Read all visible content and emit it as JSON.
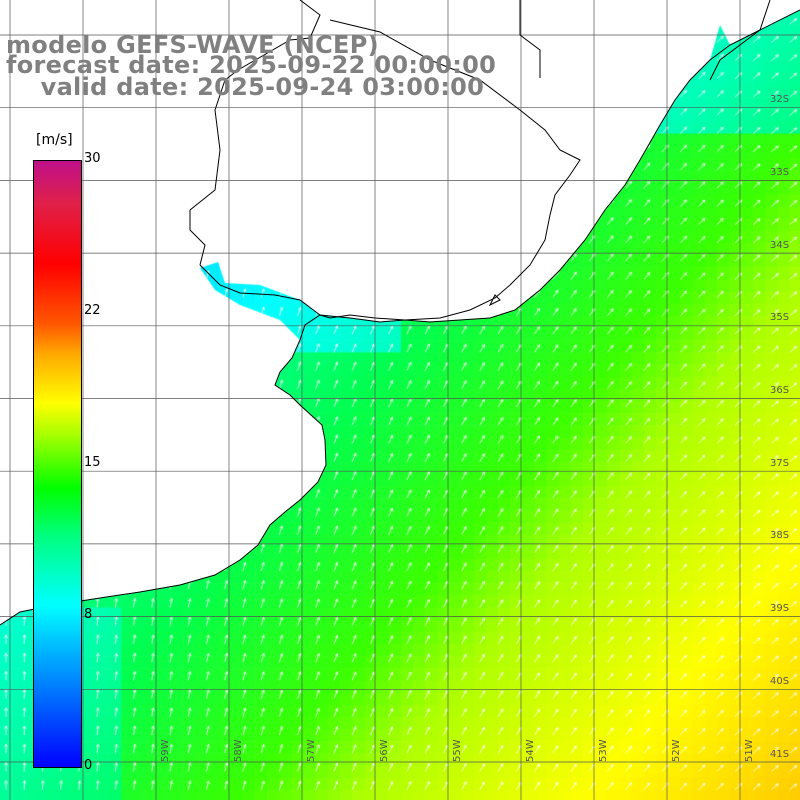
{
  "title": {
    "line1": "modelo GEFS-WAVE (NCEP)",
    "line2": "forecast date: 2025-09-22 00:00:00",
    "line3": "    valid date: 2025-09-24 03:00:00"
  },
  "colorbar": {
    "unit": "[m/s]",
    "ticks": [
      "30",
      "22",
      "15",
      "8",
      "0"
    ]
  },
  "lat_labels": [
    "32S",
    "33S",
    "34S",
    "35S",
    "36S",
    "37S",
    "38S",
    "39S",
    "40S",
    "41S"
  ],
  "lon_labels": [
    "59W",
    "58W",
    "57W",
    "56W",
    "55W",
    "54W",
    "53W",
    "52W",
    "51W"
  ],
  "map": {
    "variable": "wind speed with direction arrows",
    "grid": true,
    "land_color": "#ffffff",
    "coast_color": "#000000",
    "arrow_color": "#ffffff"
  }
}
